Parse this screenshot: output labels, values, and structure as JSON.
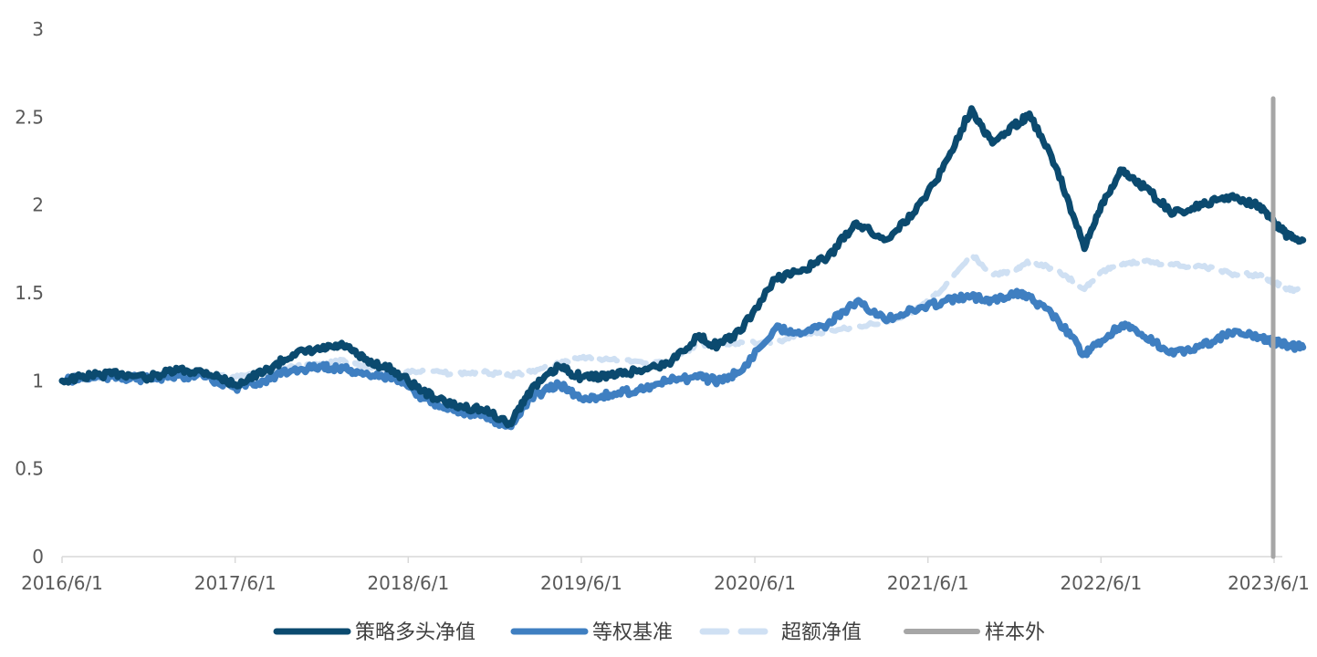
{
  "chart_data": {
    "type": "line",
    "title": "",
    "xlabel": "",
    "ylabel": "",
    "ylim": [
      0,
      3
    ],
    "yticks": [
      "0",
      "0.5",
      "1",
      "1.5",
      "2",
      "2.5",
      "3"
    ],
    "xticks": [
      "2016/6/1",
      "2017/6/1",
      "2018/6/1",
      "2019/6/1",
      "2020/6/1",
      "2021/6/1",
      "2022/6/1",
      "2023/6/1"
    ],
    "grid": false,
    "legend_position": "bottom",
    "out_of_sample_start": "2023/7/1",
    "series": [
      {
        "name": "策略多头净值",
        "color": "#0b4a6f",
        "style": "solid",
        "points": [
          [
            "2016/6/1",
            1.0
          ],
          [
            "2016/8/1",
            1.03
          ],
          [
            "2016/10/1",
            1.04
          ],
          [
            "2016/12/1",
            1.02
          ],
          [
            "2017/2/1",
            1.06
          ],
          [
            "2017/4/1",
            1.05
          ],
          [
            "2017/6/1",
            0.98
          ],
          [
            "2017/8/1",
            1.05
          ],
          [
            "2017/10/1",
            1.15
          ],
          [
            "2017/12/1",
            1.18
          ],
          [
            "2018/1/15",
            1.2
          ],
          [
            "2018/3/1",
            1.12
          ],
          [
            "2018/5/1",
            1.06
          ],
          [
            "2018/7/1",
            0.94
          ],
          [
            "2018/9/1",
            0.86
          ],
          [
            "2018/11/1",
            0.84
          ],
          [
            "2019/1/1",
            0.76
          ],
          [
            "2019/2/15",
            0.95
          ],
          [
            "2019/4/15",
            1.08
          ],
          [
            "2019/6/1",
            1.02
          ],
          [
            "2019/8/1",
            1.03
          ],
          [
            "2019/10/1",
            1.06
          ],
          [
            "2019/12/1",
            1.1
          ],
          [
            "2020/2/1",
            1.25
          ],
          [
            "2020/3/15",
            1.2
          ],
          [
            "2020/5/1",
            1.28
          ],
          [
            "2020/7/15",
            1.58
          ],
          [
            "2020/9/1",
            1.62
          ],
          [
            "2020/11/1",
            1.7
          ],
          [
            "2021/1/1",
            1.9
          ],
          [
            "2021/3/1",
            1.8
          ],
          [
            "2021/5/1",
            1.95
          ],
          [
            "2021/7/1",
            2.2
          ],
          [
            "2021/9/1",
            2.55
          ],
          [
            "2021/10/15",
            2.35
          ],
          [
            "2021/12/1",
            2.45
          ],
          [
            "2022/1/1",
            2.52
          ],
          [
            "2022/3/1",
            2.2
          ],
          [
            "2022/4/27",
            1.75
          ],
          [
            "2022/6/1",
            2.0
          ],
          [
            "2022/7/15",
            2.2
          ],
          [
            "2022/9/1",
            2.1
          ],
          [
            "2022/11/1",
            1.95
          ],
          [
            "2023/1/1",
            2.0
          ],
          [
            "2023/3/1",
            2.05
          ],
          [
            "2023/5/1",
            2.0
          ],
          [
            "2023/6/1",
            1.9
          ],
          [
            "2023/7/1",
            1.82
          ],
          [
            "2023/8/1",
            1.8
          ]
        ]
      },
      {
        "name": "等权基准",
        "color": "#3f7fc1",
        "style": "solid",
        "points": [
          [
            "2016/6/1",
            1.0
          ],
          [
            "2016/8/1",
            1.02
          ],
          [
            "2016/10/1",
            1.02
          ],
          [
            "2016/12/1",
            1.01
          ],
          [
            "2017/2/1",
            1.03
          ],
          [
            "2017/4/1",
            1.02
          ],
          [
            "2017/6/1",
            0.96
          ],
          [
            "2017/8/1",
            1.0
          ],
          [
            "2017/10/1",
            1.06
          ],
          [
            "2017/12/1",
            1.08
          ],
          [
            "2018/1/15",
            1.07
          ],
          [
            "2018/3/1",
            1.04
          ],
          [
            "2018/5/1",
            1.02
          ],
          [
            "2018/7/1",
            0.9
          ],
          [
            "2018/9/1",
            0.84
          ],
          [
            "2018/11/1",
            0.8
          ],
          [
            "2019/1/1",
            0.74
          ],
          [
            "2019/2/15",
            0.9
          ],
          [
            "2019/4/15",
            0.98
          ],
          [
            "2019/6/1",
            0.9
          ],
          [
            "2019/8/1",
            0.92
          ],
          [
            "2019/10/1",
            0.95
          ],
          [
            "2019/12/1",
            1.0
          ],
          [
            "2020/2/1",
            1.02
          ],
          [
            "2020/3/15",
            1.0
          ],
          [
            "2020/5/1",
            1.05
          ],
          [
            "2020/7/15",
            1.3
          ],
          [
            "2020/9/1",
            1.28
          ],
          [
            "2020/11/1",
            1.32
          ],
          [
            "2021/1/1",
            1.45
          ],
          [
            "2021/3/1",
            1.35
          ],
          [
            "2021/5/1",
            1.4
          ],
          [
            "2021/7/1",
            1.45
          ],
          [
            "2021/9/1",
            1.48
          ],
          [
            "2021/10/15",
            1.46
          ],
          [
            "2021/12/1",
            1.5
          ],
          [
            "2022/1/1",
            1.48
          ],
          [
            "2022/3/1",
            1.35
          ],
          [
            "2022/4/27",
            1.15
          ],
          [
            "2022/6/1",
            1.22
          ],
          [
            "2022/7/15",
            1.32
          ],
          [
            "2022/9/1",
            1.25
          ],
          [
            "2022/11/1",
            1.15
          ],
          [
            "2023/1/1",
            1.2
          ],
          [
            "2023/3/1",
            1.27
          ],
          [
            "2023/5/1",
            1.25
          ],
          [
            "2023/6/1",
            1.22
          ],
          [
            "2023/7/1",
            1.2
          ],
          [
            "2023/8/1",
            1.19
          ]
        ]
      },
      {
        "name": "超额净值",
        "color": "#cfe0f3",
        "style": "dashed",
        "points": [
          [
            "2016/6/1",
            1.0
          ],
          [
            "2016/8/1",
            1.01
          ],
          [
            "2016/10/1",
            1.02
          ],
          [
            "2016/12/1",
            1.01
          ],
          [
            "2017/2/1",
            1.03
          ],
          [
            "2017/4/1",
            1.03
          ],
          [
            "2017/6/1",
            1.02
          ],
          [
            "2017/8/1",
            1.05
          ],
          [
            "2017/10/1",
            1.08
          ],
          [
            "2017/12/1",
            1.09
          ],
          [
            "2018/1/15",
            1.12
          ],
          [
            "2018/3/1",
            1.08
          ],
          [
            "2018/5/1",
            1.04
          ],
          [
            "2018/7/1",
            1.06
          ],
          [
            "2018/9/1",
            1.04
          ],
          [
            "2018/11/1",
            1.05
          ],
          [
            "2019/1/1",
            1.03
          ],
          [
            "2019/2/15",
            1.05
          ],
          [
            "2019/4/15",
            1.1
          ],
          [
            "2019/6/1",
            1.13
          ],
          [
            "2019/8/1",
            1.12
          ],
          [
            "2019/10/1",
            1.11
          ],
          [
            "2019/12/1",
            1.1
          ],
          [
            "2020/2/1",
            1.21
          ],
          [
            "2020/3/15",
            1.2
          ],
          [
            "2020/5/1",
            1.22
          ],
          [
            "2020/7/15",
            1.22
          ],
          [
            "2020/9/1",
            1.26
          ],
          [
            "2020/11/1",
            1.28
          ],
          [
            "2021/1/1",
            1.31
          ],
          [
            "2021/3/1",
            1.33
          ],
          [
            "2021/5/1",
            1.39
          ],
          [
            "2021/7/1",
            1.52
          ],
          [
            "2021/9/1",
            1.72
          ],
          [
            "2021/10/15",
            1.6
          ],
          [
            "2021/12/1",
            1.63
          ],
          [
            "2022/1/1",
            1.68
          ],
          [
            "2022/3/1",
            1.63
          ],
          [
            "2022/4/27",
            1.52
          ],
          [
            "2022/6/1",
            1.62
          ],
          [
            "2022/7/15",
            1.66
          ],
          [
            "2022/9/1",
            1.68
          ],
          [
            "2022/11/1",
            1.66
          ],
          [
            "2023/1/1",
            1.65
          ],
          [
            "2023/3/1",
            1.61
          ],
          [
            "2023/5/1",
            1.6
          ],
          [
            "2023/6/1",
            1.56
          ],
          [
            "2023/7/1",
            1.52
          ],
          [
            "2023/8/1",
            1.51
          ]
        ]
      },
      {
        "name": "样本外",
        "color": "#a6a6a6",
        "style": "marker"
      }
    ]
  }
}
